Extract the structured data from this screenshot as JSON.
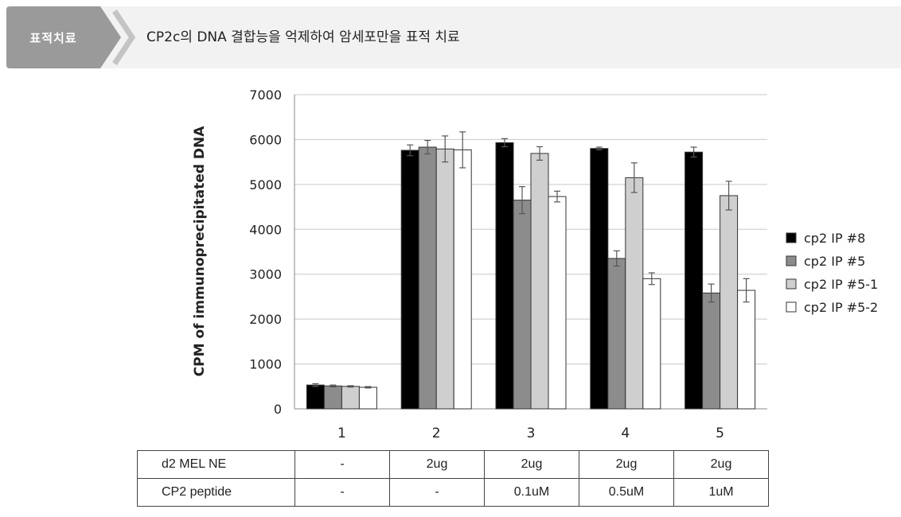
{
  "header": {
    "badge": "표적치료",
    "title": "CP2c의 DNA 결합능을 억제하여 암세포만을 표적 치료"
  },
  "chart_data": {
    "type": "bar",
    "ylabel": "CPM of immunoprecipitated DNA",
    "ylim": [
      0,
      7000
    ],
    "yticks": [
      "0",
      "1000",
      "2000",
      "3000",
      "4000",
      "5000",
      "6000",
      "7000"
    ],
    "categories": [
      "1",
      "2",
      "3",
      "4",
      "5"
    ],
    "grid": true,
    "legend_position": "right",
    "series": [
      {
        "name": "cp2 IP #8",
        "color": "#000000",
        "values": [
          530,
          5760,
          5930,
          5800,
          5720
        ],
        "errors": [
          30,
          120,
          90,
          30,
          110
        ]
      },
      {
        "name": "cp2 IP #5",
        "color": "#8c8c8c",
        "values": [
          510,
          5830,
          4650,
          3350,
          2580
        ],
        "errors": [
          20,
          150,
          300,
          170,
          200
        ]
      },
      {
        "name": "cp2 IP #5-1",
        "color": "#cfcfcf",
        "values": [
          500,
          5790,
          5690,
          5150,
          4750
        ],
        "errors": [
          15,
          290,
          150,
          330,
          320
        ]
      },
      {
        "name": "cp2 IP #5-2",
        "color": "#ffffff",
        "values": [
          480,
          5770,
          4730,
          2900,
          2640
        ],
        "errors": [
          15,
          400,
          120,
          130,
          260
        ]
      }
    ]
  },
  "conditions_table": {
    "rows": [
      {
        "label": "d2 MEL NE",
        "values": [
          "-",
          "2ug",
          "2ug",
          "2ug",
          "2ug"
        ]
      },
      {
        "label": "CP2 peptide",
        "values": [
          "-",
          "-",
          "0.1uM",
          "0.5uM",
          "1uM"
        ]
      }
    ]
  }
}
